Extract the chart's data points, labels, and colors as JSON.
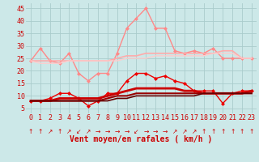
{
  "x": [
    0,
    1,
    2,
    3,
    4,
    5,
    6,
    7,
    8,
    9,
    10,
    11,
    12,
    13,
    14,
    15,
    16,
    17,
    18,
    19,
    20,
    21,
    22,
    23
  ],
  "background_color": "#cce8e8",
  "grid_color": "#aacccc",
  "xlabel": "Vent moyen/en rafales ( km/h )",
  "xlabel_color": "#cc0000",
  "xlabel_fontsize": 7,
  "tick_color": "#cc0000",
  "tick_fontsize": 6,
  "ylim": [
    3,
    47
  ],
  "yticks": [
    5,
    10,
    15,
    20,
    25,
    30,
    35,
    40,
    45
  ],
  "series": [
    {
      "label": "rafales_marker",
      "values": [
        24,
        29,
        24,
        23,
        27,
        19,
        16,
        19,
        19,
        27,
        37,
        41,
        45,
        37,
        37,
        28,
        27,
        28,
        27,
        29,
        25,
        25,
        25,
        25
      ],
      "color": "#ff8888",
      "linewidth": 1.0,
      "marker": "D",
      "markersize": 2.0,
      "alpha": 1.0
    },
    {
      "label": "rafales_smooth1",
      "values": [
        24,
        24,
        24,
        24,
        24,
        24,
        24,
        24,
        24,
        25,
        26,
        26,
        27,
        27,
        27,
        27,
        27,
        27,
        27,
        27,
        28,
        28,
        25,
        25
      ],
      "color": "#ffaaaa",
      "linewidth": 1.2,
      "marker": null,
      "markersize": 0,
      "alpha": 1.0
    },
    {
      "label": "rafales_smooth2",
      "values": [
        24,
        23,
        23,
        23,
        24,
        24,
        24,
        24,
        24,
        24,
        25,
        25,
        25,
        26,
        26,
        26,
        26,
        26,
        26,
        27,
        27,
        27,
        25,
        25
      ],
      "color": "#ffcccc",
      "linewidth": 1.0,
      "marker": null,
      "markersize": 0,
      "alpha": 1.0
    },
    {
      "label": "vent_marker",
      "values": [
        8,
        8,
        9,
        11,
        11,
        9,
        6,
        8,
        11,
        11,
        16,
        19,
        19,
        17,
        18,
        16,
        15,
        12,
        12,
        12,
        7,
        11,
        12,
        12
      ],
      "color": "#ee0000",
      "linewidth": 1.0,
      "marker": "D",
      "markersize": 2.0,
      "alpha": 1.0
    },
    {
      "label": "vent_smooth1",
      "values": [
        8,
        8,
        8,
        9,
        9,
        9,
        9,
        9,
        10,
        11,
        12,
        13,
        13,
        13,
        13,
        13,
        12,
        12,
        11,
        11,
        11,
        11,
        11,
        12
      ],
      "color": "#cc0000",
      "linewidth": 2.0,
      "marker": null,
      "markersize": 0,
      "alpha": 1.0
    },
    {
      "label": "vent_smooth2",
      "values": [
        8,
        8,
        8,
        8,
        8,
        8,
        8,
        8,
        9,
        10,
        10,
        11,
        11,
        11,
        11,
        11,
        11,
        11,
        11,
        11,
        11,
        11,
        11,
        11
      ],
      "color": "#990000",
      "linewidth": 1.5,
      "marker": null,
      "markersize": 0,
      "alpha": 1.0
    },
    {
      "label": "vent_smooth3",
      "values": [
        8,
        8,
        8,
        8,
        8,
        8,
        8,
        8,
        8,
        9,
        9,
        10,
        10,
        10,
        10,
        10,
        10,
        10,
        11,
        11,
        11,
        11,
        11,
        11
      ],
      "color": "#660000",
      "linewidth": 1.2,
      "marker": null,
      "markersize": 0,
      "alpha": 1.0
    }
  ],
  "arrow_symbols": [
    "↑",
    "↑",
    "↗",
    "↑",
    "↗",
    "↙",
    "↗",
    "→",
    "→",
    "→",
    "→",
    "↙",
    "→",
    "→",
    "→",
    "↗",
    "↗",
    "↗",
    "↑",
    "↑",
    "↑",
    "↑",
    "↑",
    "↑"
  ],
  "arrow_color": "#cc0000"
}
